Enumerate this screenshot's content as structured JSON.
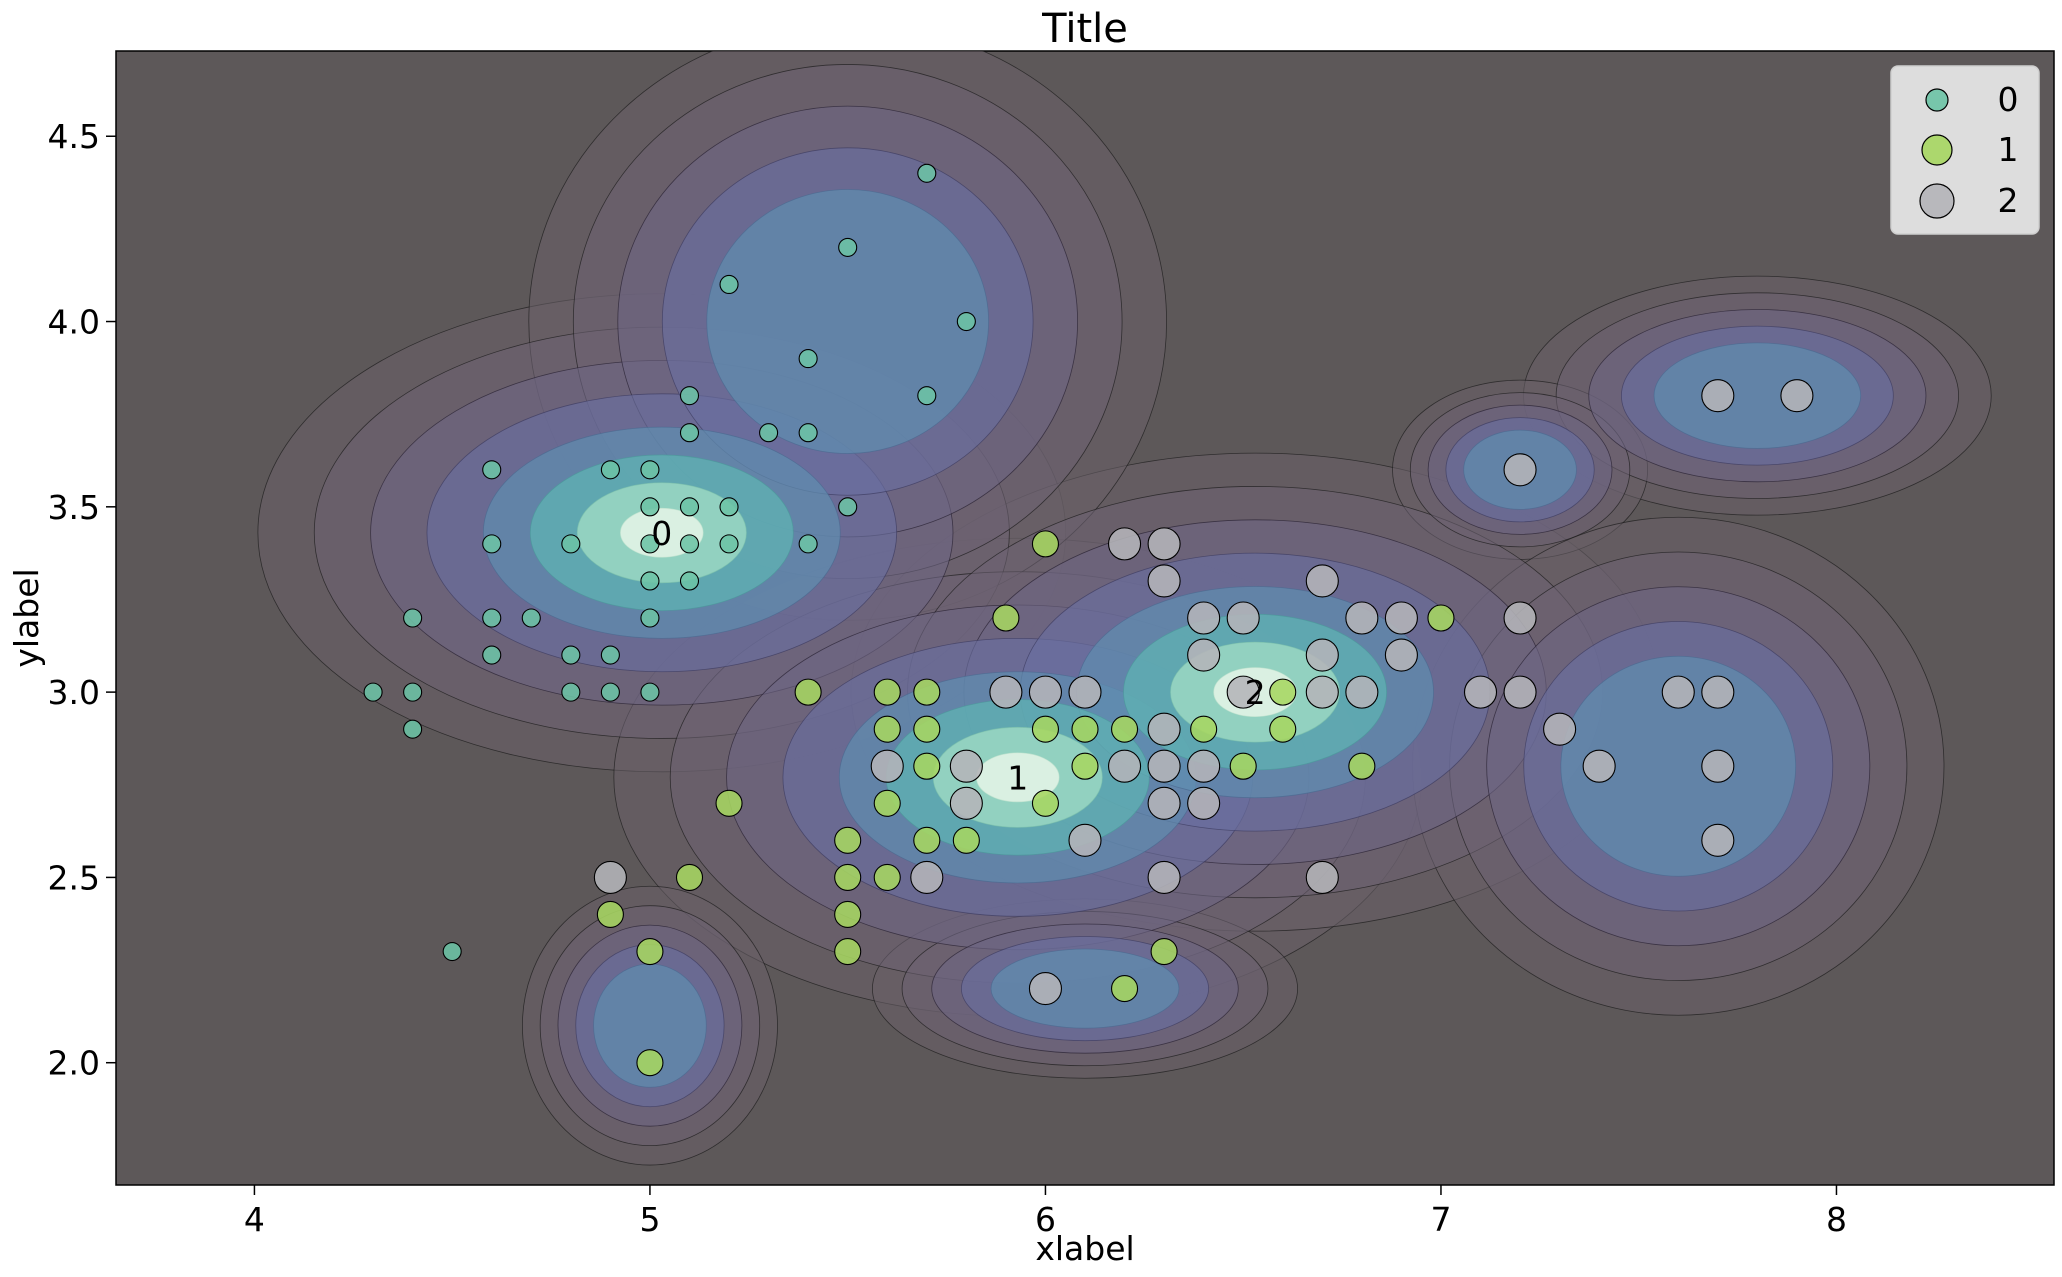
{
  "chart_data": {
    "type": "scatter",
    "title": "Title",
    "xlabel": "xlabel",
    "ylabel": "ylabel",
    "xlim": [
      3.65,
      8.55
    ],
    "ylim": [
      1.67,
      4.73
    ],
    "xticks": [
      4,
      5,
      6,
      7,
      8
    ],
    "xtick_labels": [
      "4",
      "5",
      "6",
      "7",
      "8"
    ],
    "yticks": [
      2.0,
      2.5,
      3.0,
      3.5,
      4.0,
      4.5
    ],
    "ytick_labels": [
      "2.0",
      "2.5",
      "3.0",
      "3.5",
      "4.0",
      "4.5"
    ],
    "grid": false,
    "legend_position": "top-right",
    "background_color": "#5d5859",
    "series": [
      {
        "name": "0",
        "color": "#6cc3a5",
        "size": "small",
        "points": [
          [
            5.7,
            4.4
          ],
          [
            5.5,
            4.2
          ],
          [
            5.2,
            4.1
          ],
          [
            5.8,
            4.0
          ],
          [
            5.4,
            3.9
          ],
          [
            5.1,
            3.8
          ],
          [
            5.7,
            3.8
          ],
          [
            5.1,
            3.7
          ],
          [
            5.3,
            3.7
          ],
          [
            5.4,
            3.7
          ],
          [
            4.6,
            3.6
          ],
          [
            4.9,
            3.6
          ],
          [
            5.0,
            3.6
          ],
          [
            5.0,
            3.5
          ],
          [
            5.1,
            3.5
          ],
          [
            5.2,
            3.5
          ],
          [
            5.5,
            3.5
          ],
          [
            4.6,
            3.4
          ],
          [
            4.8,
            3.4
          ],
          [
            5.0,
            3.4
          ],
          [
            5.1,
            3.4
          ],
          [
            5.2,
            3.4
          ],
          [
            5.4,
            3.4
          ],
          [
            5.0,
            3.3
          ],
          [
            5.1,
            3.3
          ],
          [
            4.4,
            3.2
          ],
          [
            4.6,
            3.2
          ],
          [
            4.7,
            3.2
          ],
          [
            5.0,
            3.2
          ],
          [
            4.6,
            3.1
          ],
          [
            4.8,
            3.1
          ],
          [
            4.9,
            3.1
          ],
          [
            4.3,
            3.0
          ],
          [
            4.4,
            3.0
          ],
          [
            4.8,
            3.0
          ],
          [
            4.9,
            3.0
          ],
          [
            5.0,
            3.0
          ],
          [
            4.4,
            2.9
          ],
          [
            4.5,
            2.3
          ]
        ],
        "centroid": [
          5.03,
          3.43
        ],
        "centroid_label": "0"
      },
      {
        "name": "1",
        "color": "#a6d661",
        "size": "medium",
        "points": [
          [
            6.0,
            3.4
          ],
          [
            5.9,
            3.2
          ],
          [
            7.0,
            3.2
          ],
          [
            5.4,
            3.0
          ],
          [
            5.6,
            3.0
          ],
          [
            5.7,
            3.0
          ],
          [
            6.6,
            3.0
          ],
          [
            5.6,
            2.9
          ],
          [
            5.7,
            2.9
          ],
          [
            6.0,
            2.9
          ],
          [
            6.1,
            2.9
          ],
          [
            6.2,
            2.9
          ],
          [
            6.4,
            2.9
          ],
          [
            6.6,
            2.9
          ],
          [
            5.7,
            2.8
          ],
          [
            6.1,
            2.8
          ],
          [
            6.5,
            2.8
          ],
          [
            6.8,
            2.8
          ],
          [
            5.2,
            2.7
          ],
          [
            5.6,
            2.7
          ],
          [
            6.0,
            2.7
          ],
          [
            5.5,
            2.6
          ],
          [
            5.7,
            2.6
          ],
          [
            5.8,
            2.6
          ],
          [
            5.1,
            2.5
          ],
          [
            5.5,
            2.5
          ],
          [
            5.6,
            2.5
          ],
          [
            4.9,
            2.4
          ],
          [
            5.5,
            2.4
          ],
          [
            5.0,
            2.3
          ],
          [
            5.5,
            2.3
          ],
          [
            6.3,
            2.3
          ],
          [
            6.2,
            2.2
          ],
          [
            5.0,
            2.0
          ]
        ],
        "centroid": [
          5.93,
          2.77
        ],
        "centroid_label": "1"
      },
      {
        "name": "2",
        "color": "#b4b4b8",
        "size": "large",
        "points": [
          [
            7.7,
            3.8
          ],
          [
            7.9,
            3.8
          ],
          [
            7.2,
            3.6
          ],
          [
            6.2,
            3.4
          ],
          [
            6.3,
            3.4
          ],
          [
            6.3,
            3.3
          ],
          [
            6.7,
            3.3
          ],
          [
            6.4,
            3.2
          ],
          [
            6.5,
            3.2
          ],
          [
            6.8,
            3.2
          ],
          [
            6.9,
            3.2
          ],
          [
            7.2,
            3.2
          ],
          [
            6.4,
            3.1
          ],
          [
            6.7,
            3.1
          ],
          [
            6.9,
            3.1
          ],
          [
            5.9,
            3.0
          ],
          [
            6.0,
            3.0
          ],
          [
            6.1,
            3.0
          ],
          [
            6.5,
            3.0
          ],
          [
            6.7,
            3.0
          ],
          [
            6.8,
            3.0
          ],
          [
            7.1,
            3.0
          ],
          [
            7.2,
            3.0
          ],
          [
            7.6,
            3.0
          ],
          [
            7.7,
            3.0
          ],
          [
            6.3,
            2.9
          ],
          [
            7.3,
            2.9
          ],
          [
            5.6,
            2.8
          ],
          [
            5.8,
            2.8
          ],
          [
            6.2,
            2.8
          ],
          [
            6.3,
            2.8
          ],
          [
            6.4,
            2.8
          ],
          [
            7.4,
            2.8
          ],
          [
            7.7,
            2.8
          ],
          [
            5.8,
            2.7
          ],
          [
            6.3,
            2.7
          ],
          [
            6.4,
            2.7
          ],
          [
            6.1,
            2.6
          ],
          [
            7.7,
            2.6
          ],
          [
            4.9,
            2.5
          ],
          [
            5.7,
            2.5
          ],
          [
            6.3,
            2.5
          ],
          [
            6.7,
            2.5
          ],
          [
            6.0,
            2.2
          ]
        ],
        "centroid": [
          6.53,
          3.0
        ],
        "centroid_label": "2"
      }
    ],
    "density_contours": "kernel density estimate of all points; dark outer contours, purple to teal to near-white toward the peaks near (5.05, 3.45) and (6.45, 2.95)"
  }
}
